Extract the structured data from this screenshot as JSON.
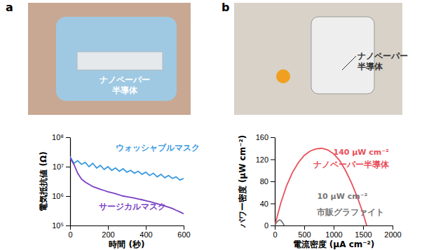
{
  "photos": [
    {
      "panel": "a",
      "label_lines": [
        "ナノペーパー",
        "半導体"
      ]
    },
    {
      "panel": "b",
      "label_lines": [
        "ナノペーパー",
        "半導体"
      ]
    }
  ],
  "chart_data": [
    {
      "type": "line",
      "x_label": "時間 (秒)",
      "y_label": "電気抵抗値 (Ω)",
      "log": "y",
      "x": [
        0,
        20,
        40,
        60,
        80,
        100,
        120,
        140,
        160,
        180,
        200,
        220,
        240,
        260,
        280,
        300,
        320,
        340,
        360,
        380,
        400,
        420,
        440,
        460,
        480,
        500,
        520,
        540,
        560,
        580,
        600
      ],
      "xlim": [
        0,
        600
      ],
      "xticks": [
        0,
        200,
        400,
        600
      ],
      "ylim": [
        100000,
        100000000
      ],
      "yticks": [
        {
          "value": 100000,
          "label": "10⁵"
        },
        {
          "value": 1000000,
          "label": "10⁶"
        },
        {
          "value": 10000000,
          "label": "10⁷"
        },
        {
          "value": 100000000,
          "label": "10⁸"
        }
      ],
      "series": [
        {
          "name": "ウォッシャブルマスク",
          "color": "#3a9ae0",
          "values": [
            22000000,
            13000000,
            16000000,
            12000000,
            14000000,
            10000000,
            13000000,
            9000000,
            11000000,
            8000000,
            10000000,
            7500000,
            9000000,
            7000000,
            8500000,
            6500000,
            7500000,
            6000000,
            7000000,
            5500000,
            6500000,
            5000000,
            6000000,
            4500000,
            5500000,
            4200000,
            5000000,
            4000000,
            4500000,
            3500000,
            4000000
          ]
        },
        {
          "name": "サージカルマスク",
          "color": "#7b3fc4",
          "values": [
            20000000,
            12000000,
            6000000,
            3800000,
            3000000,
            2500000,
            2100000,
            1900000,
            1700000,
            1550000,
            1400000,
            1300000,
            1200000,
            1100000,
            1000000,
            950000,
            900000,
            850000,
            800000,
            750000,
            700000,
            650000,
            600000,
            550000,
            500000,
            460000,
            420000,
            380000,
            330000,
            290000,
            250000
          ]
        }
      ]
    },
    {
      "type": "line",
      "x_label": "電流密度 (μA cm⁻²)",
      "y_label": "パワー密度 (μW cm⁻²)",
      "xlim": [
        0,
        2000
      ],
      "xticks": [
        0,
        500,
        1000,
        1500,
        2000
      ],
      "ylim": [
        0,
        160
      ],
      "yticks": [
        0,
        40,
        80,
        120,
        160
      ],
      "annotations": [
        {
          "text": "140 μW cm⁻²",
          "color": "#e8505b"
        },
        {
          "text": "10 μW cm⁻²",
          "color": "#777777"
        }
      ],
      "series": [
        {
          "name": "ナノペーパー半導体",
          "color": "#e8505b",
          "x": [
            0,
            100,
            200,
            300,
            400,
            500,
            600,
            700,
            800,
            900,
            1000,
            1100,
            1200,
            1300,
            1400,
            1500,
            1560
          ],
          "values": [
            0,
            40,
            72,
            96,
            114,
            127,
            135,
            139,
            140,
            137,
            130,
            118,
            100,
            78,
            52,
            22,
            0
          ]
        },
        {
          "name": "市販グラファイト",
          "color": "#777777",
          "x": [
            0,
            20,
            40,
            60,
            80,
            100,
            120,
            140,
            160
          ],
          "values": [
            0,
            4,
            7,
            9,
            10,
            9.5,
            7,
            4,
            0
          ]
        }
      ]
    }
  ]
}
